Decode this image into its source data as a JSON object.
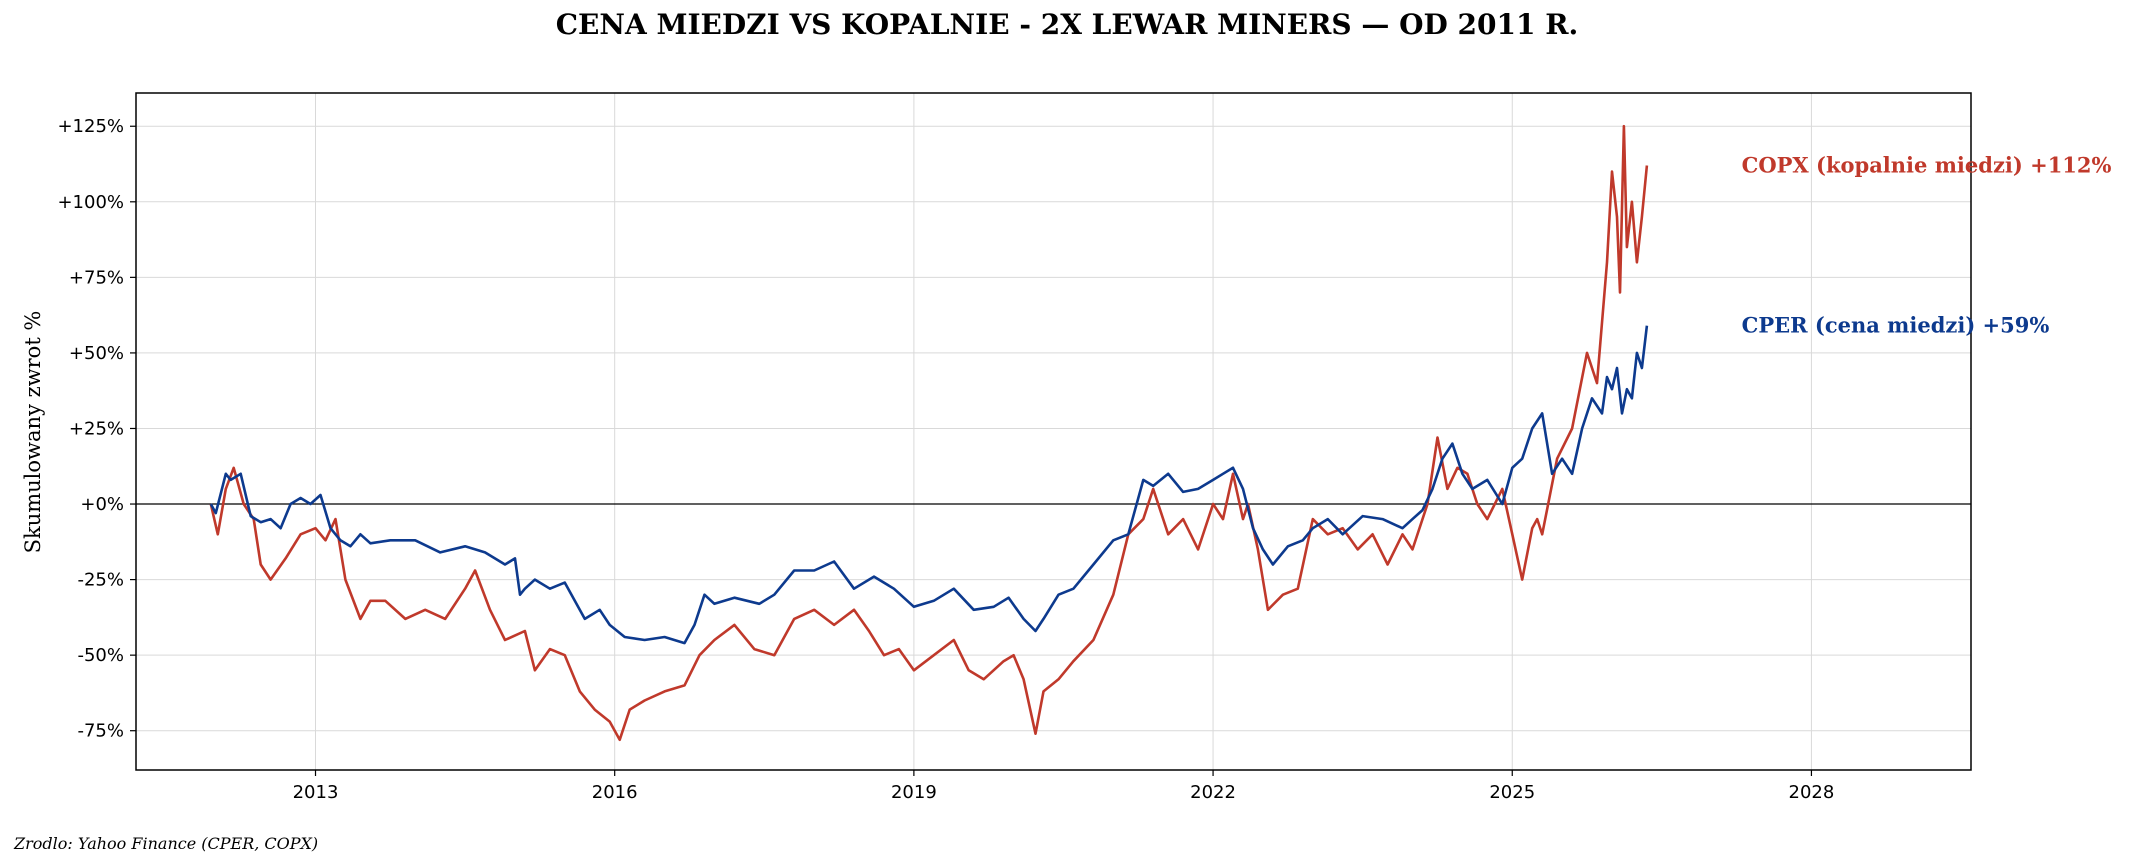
{
  "chart_data": {
    "type": "line",
    "title": "CENA MIEDZI VS KOPALNIE - 2X LEWAR MINERS — OD 2011 R.",
    "xlabel": "",
    "ylabel": "Skumulowany zwrot %",
    "source": "Zrodlo: Yahoo Finance (CPER, COPX)",
    "xlim": [
      2011.2,
      2029.6
    ],
    "ylim": [
      -88,
      136
    ],
    "grid": true,
    "zero_line": true,
    "x_ticks": [
      {
        "value": 2013,
        "label": "2013"
      },
      {
        "value": 2016,
        "label": "2016"
      },
      {
        "value": 2019,
        "label": "2019"
      },
      {
        "value": 2022,
        "label": "2022"
      },
      {
        "value": 2025,
        "label": "2025"
      },
      {
        "value": 2028,
        "label": "2028"
      }
    ],
    "y_ticks": [
      {
        "value": 125,
        "label": "+125%"
      },
      {
        "value": 100,
        "label": "+100%"
      },
      {
        "value": 75,
        "label": "+75%"
      },
      {
        "value": 50,
        "label": "+50%"
      },
      {
        "value": 25,
        "label": "+25%"
      },
      {
        "value": 0,
        "label": "+0%"
      },
      {
        "value": -25,
        "label": "-25%"
      },
      {
        "value": -50,
        "label": "-50%"
      },
      {
        "value": -75,
        "label": "-75%"
      }
    ],
    "series": [
      {
        "name": "CPER (cena miedzi)",
        "end_label": "CPER (cena miedzi)  +59%",
        "color": "#0d3a8e",
        "x": [
          2011.95,
          2012.0,
          2012.1,
          2012.15,
          2012.25,
          2012.35,
          2012.45,
          2012.55,
          2012.65,
          2012.75,
          2012.85,
          2012.95,
          2013.05,
          2013.15,
          2013.25,
          2013.35,
          2013.45,
          2013.55,
          2013.75,
          2014.0,
          2014.25,
          2014.5,
          2014.7,
          2014.9,
          2015.0,
          2015.05,
          2015.1,
          2015.2,
          2015.35,
          2015.5,
          2015.7,
          2015.85,
          2015.95,
          2016.1,
          2016.3,
          2016.5,
          2016.7,
          2016.8,
          2016.9,
          2017.0,
          2017.2,
          2017.45,
          2017.6,
          2017.8,
          2018.0,
          2018.2,
          2018.4,
          2018.6,
          2018.8,
          2019.0,
          2019.2,
          2019.4,
          2019.6,
          2019.8,
          2019.95,
          2020.1,
          2020.22,
          2020.3,
          2020.45,
          2020.6,
          2020.8,
          2021.0,
          2021.15,
          2021.3,
          2021.4,
          2021.55,
          2021.7,
          2021.85,
          2022.0,
          2022.1,
          2022.2,
          2022.3,
          2022.4,
          2022.5,
          2022.6,
          2022.75,
          2022.9,
          2023.0,
          2023.15,
          2023.3,
          2023.5,
          2023.7,
          2023.9,
          2024.0,
          2024.1,
          2024.2,
          2024.3,
          2024.4,
          2024.5,
          2024.6,
          2024.75,
          2024.9,
          2025.0,
          2025.1,
          2025.2,
          2025.3,
          2025.4,
          2025.5,
          2025.6,
          2025.7,
          2025.8,
          2025.9,
          2025.95,
          2026.0,
          2026.05,
          2026.1,
          2026.15,
          2026.2,
          2026.25,
          2026.3,
          2026.35
        ],
        "y": [
          0,
          -3,
          10,
          8,
          10,
          -4,
          -6,
          -5,
          -8,
          0,
          2,
          0,
          3,
          -8,
          -12,
          -14,
          -10,
          -13,
          -12,
          -12,
          -16,
          -14,
          -16,
          -20,
          -18,
          -30,
          -28,
          -25,
          -28,
          -26,
          -38,
          -35,
          -40,
          -44,
          -45,
          -44,
          -46,
          -40,
          -30,
          -33,
          -31,
          -33,
          -30,
          -22,
          -22,
          -19,
          -28,
          -24,
          -28,
          -34,
          -32,
          -28,
          -35,
          -34,
          -31,
          -38,
          -42,
          -38,
          -30,
          -28,
          -20,
          -12,
          -10,
          8,
          6,
          10,
          4,
          5,
          8,
          10,
          12,
          5,
          -8,
          -15,
          -20,
          -14,
          -12,
          -8,
          -5,
          -10,
          -4,
          -5,
          -8,
          -5,
          -2,
          5,
          15,
          20,
          10,
          5,
          8,
          0,
          12,
          15,
          25,
          30,
          10,
          15,
          10,
          25,
          35,
          30,
          42,
          38,
          45,
          30,
          38,
          35,
          50,
          45,
          59
        ]
      },
      {
        "name": "COPX (kopalnie miedzi)",
        "end_label": "COPX (kopalnie miedzi)  +112%",
        "color": "#c0392b",
        "x": [
          2011.95,
          2012.02,
          2012.1,
          2012.18,
          2012.28,
          2012.38,
          2012.45,
          2012.55,
          2012.7,
          2012.85,
          2013.0,
          2013.1,
          2013.2,
          2013.3,
          2013.45,
          2013.55,
          2013.7,
          2013.9,
          2014.1,
          2014.3,
          2014.5,
          2014.6,
          2014.75,
          2014.9,
          2015.1,
          2015.2,
          2015.35,
          2015.5,
          2015.65,
          2015.8,
          2015.95,
          2016.05,
          2016.15,
          2016.3,
          2016.5,
          2016.7,
          2016.85,
          2017.0,
          2017.2,
          2017.4,
          2017.6,
          2017.8,
          2018.0,
          2018.2,
          2018.4,
          2018.55,
          2018.7,
          2018.85,
          2019.0,
          2019.2,
          2019.4,
          2019.55,
          2019.7,
          2019.9,
          2020.0,
          2020.1,
          2020.22,
          2020.3,
          2020.45,
          2020.6,
          2020.8,
          2021.0,
          2021.15,
          2021.3,
          2021.4,
          2021.55,
          2021.7,
          2021.85,
          2022.0,
          2022.1,
          2022.2,
          2022.3,
          2022.35,
          2022.45,
          2022.55,
          2022.7,
          2022.85,
          2023.0,
          2023.15,
          2023.3,
          2023.45,
          2023.6,
          2023.75,
          2023.9,
          2024.0,
          2024.15,
          2024.25,
          2024.35,
          2024.45,
          2024.55,
          2024.65,
          2024.75,
          2024.9,
          2025.0,
          2025.1,
          2025.2,
          2025.25,
          2025.3,
          2025.45,
          2025.6,
          2025.75,
          2025.85,
          2025.95,
          2026.0,
          2026.05,
          2026.08,
          2026.12,
          2026.15,
          2026.2,
          2026.25,
          2026.3,
          2026.35
        ],
        "y": [
          0,
          -10,
          5,
          12,
          0,
          -5,
          -20,
          -25,
          -18,
          -10,
          -8,
          -12,
          -5,
          -25,
          -38,
          -32,
          -32,
          -38,
          -35,
          -38,
          -28,
          -22,
          -35,
          -45,
          -42,
          -55,
          -48,
          -50,
          -62,
          -68,
          -72,
          -78,
          -68,
          -65,
          -62,
          -60,
          -50,
          -45,
          -40,
          -48,
          -50,
          -38,
          -35,
          -40,
          -35,
          -42,
          -50,
          -48,
          -55,
          -50,
          -45,
          -55,
          -58,
          -52,
          -50,
          -58,
          -76,
          -62,
          -58,
          -52,
          -45,
          -30,
          -10,
          -5,
          5,
          -10,
          -5,
          -15,
          0,
          -5,
          10,
          -5,
          0,
          -15,
          -35,
          -30,
          -28,
          -5,
          -10,
          -8,
          -15,
          -10,
          -20,
          -10,
          -15,
          0,
          22,
          5,
          12,
          10,
          0,
          -5,
          5,
          -10,
          -25,
          -8,
          -5,
          -10,
          15,
          25,
          50,
          40,
          80,
          110,
          95,
          70,
          125,
          85,
          100,
          80,
          95,
          112
        ]
      }
    ]
  }
}
